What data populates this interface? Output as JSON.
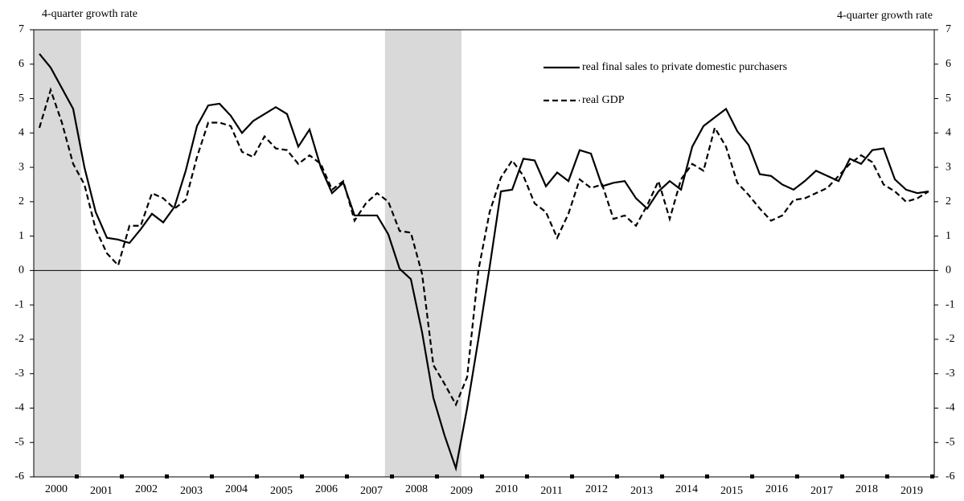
{
  "chart_data": {
    "type": "line",
    "y_axis_label": "4-quarter growth rate",
    "y2_axis_label": "4-quarter growth rate",
    "xlim": [
      2000,
      2020
    ],
    "xticks": [
      {
        "value": 2000.5,
        "label": "2000"
      },
      {
        "value": 2001.5,
        "label": "2001"
      },
      {
        "value": 2002.5,
        "label": "2002"
      },
      {
        "value": 2003.5,
        "label": "2003"
      },
      {
        "value": 2004.5,
        "label": "2004"
      },
      {
        "value": 2005.5,
        "label": "2005"
      },
      {
        "value": 2006.5,
        "label": "2006"
      },
      {
        "value": 2007.5,
        "label": "2007"
      },
      {
        "value": 2008.5,
        "label": "2008"
      },
      {
        "value": 2009.5,
        "label": "2009"
      },
      {
        "value": 2010.5,
        "label": "2010"
      },
      {
        "value": 2011.5,
        "label": "2011"
      },
      {
        "value": 2012.5,
        "label": "2012"
      },
      {
        "value": 2013.5,
        "label": "2013"
      },
      {
        "value": 2014.5,
        "label": "2014"
      },
      {
        "value": 2015.5,
        "label": "2015"
      },
      {
        "value": 2016.5,
        "label": "2016"
      },
      {
        "value": 2017.5,
        "label": "2017"
      },
      {
        "value": 2018.5,
        "label": "2018"
      },
      {
        "value": 2019.5,
        "label": "2019"
      }
    ],
    "ylim": [
      -6,
      7
    ],
    "yticks": [
      -6,
      -5,
      -4,
      -3,
      -2,
      -1,
      0,
      1,
      2,
      3,
      4,
      5,
      6,
      7
    ],
    "y2lim": [
      -6,
      7
    ],
    "y2ticks": [
      -6,
      -5,
      -4,
      -3,
      -2,
      -1,
      0,
      1,
      2,
      3,
      4,
      5,
      6,
      7
    ],
    "shaded_periods": [
      [
        2000,
        2001.05
      ],
      [
        2007.8,
        2009.5
      ]
    ],
    "shade_color": "#d9d9d9",
    "x": [
      2000.125,
      2000.375,
      2000.625,
      2000.875,
      2001.125,
      2001.375,
      2001.625,
      2001.875,
      2002.125,
      2002.375,
      2002.625,
      2002.875,
      2003.125,
      2003.375,
      2003.625,
      2003.875,
      2004.125,
      2004.375,
      2004.625,
      2004.875,
      2005.125,
      2005.375,
      2005.625,
      2005.875,
      2006.125,
      2006.375,
      2006.625,
      2006.875,
      2007.125,
      2007.375,
      2007.625,
      2007.875,
      2008.125,
      2008.375,
      2008.625,
      2008.875,
      2009.125,
      2009.375,
      2009.625,
      2009.875,
      2010.125,
      2010.375,
      2010.625,
      2010.875,
      2011.125,
      2011.375,
      2011.625,
      2011.875,
      2012.125,
      2012.375,
      2012.625,
      2012.875,
      2013.125,
      2013.375,
      2013.625,
      2013.875,
      2014.125,
      2014.375,
      2014.625,
      2014.875,
      2015.125,
      2015.375,
      2015.625,
      2015.875,
      2016.125,
      2016.375,
      2016.625,
      2016.875,
      2017.125,
      2017.375,
      2017.625,
      2017.875,
      2018.125,
      2018.375,
      2018.625,
      2018.875,
      2019.125,
      2019.375,
      2019.625,
      2019.875
    ],
    "series": [
      {
        "name": "real final sales to private domestic purchasers",
        "color": "#000000",
        "dash": "solid",
        "values": [
          6.3,
          5.9,
          5.3,
          4.7,
          3.0,
          1.7,
          0.95,
          0.9,
          0.8,
          1.2,
          1.65,
          1.4,
          1.85,
          2.9,
          4.2,
          4.8,
          4.85,
          4.5,
          4.0,
          4.35,
          4.55,
          4.75,
          4.55,
          3.6,
          4.1,
          3.0,
          2.25,
          2.55,
          1.6,
          1.6,
          1.6,
          1.05,
          0.05,
          -0.25,
          -1.8,
          -3.7,
          -4.8,
          -5.75,
          -4.0,
          -2.0,
          0.1,
          2.3,
          2.35,
          3.25,
          3.2,
          2.45,
          2.85,
          2.6,
          3.5,
          3.4,
          2.45,
          2.55,
          2.6,
          2.1,
          1.8,
          2.3,
          2.6,
          2.35,
          3.6,
          4.2,
          4.45,
          4.7,
          4.05,
          3.65,
          2.8,
          2.75,
          2.5,
          2.35,
          2.6,
          2.9,
          2.75,
          2.6,
          3.25,
          3.1,
          3.5,
          3.55,
          2.65,
          2.35,
          2.25,
          2.3
        ]
      },
      {
        "name": "real GDP",
        "color": "#000000",
        "dash": "dashed",
        "values": [
          4.15,
          5.25,
          4.3,
          3.1,
          2.5,
          1.2,
          0.5,
          0.15,
          1.3,
          1.3,
          2.25,
          2.1,
          1.8,
          2.05,
          3.3,
          4.3,
          4.3,
          4.2,
          3.45,
          3.3,
          3.9,
          3.55,
          3.5,
          3.1,
          3.35,
          3.1,
          2.35,
          2.6,
          1.45,
          1.95,
          2.25,
          2.0,
          1.15,
          1.1,
          -0.1,
          -2.75,
          -3.3,
          -3.9,
          -3.1,
          0.0,
          1.7,
          2.7,
          3.2,
          2.75,
          1.95,
          1.7,
          0.95,
          1.65,
          2.65,
          2.4,
          2.5,
          1.5,
          1.6,
          1.3,
          1.9,
          2.6,
          1.5,
          2.65,
          3.1,
          2.9,
          4.15,
          3.6,
          2.55,
          2.2,
          1.8,
          1.45,
          1.6,
          2.05,
          2.1,
          2.25,
          2.4,
          2.75,
          3.1,
          3.35,
          3.15,
          2.5,
          2.3,
          2.0,
          2.1,
          2.3
        ]
      }
    ]
  }
}
